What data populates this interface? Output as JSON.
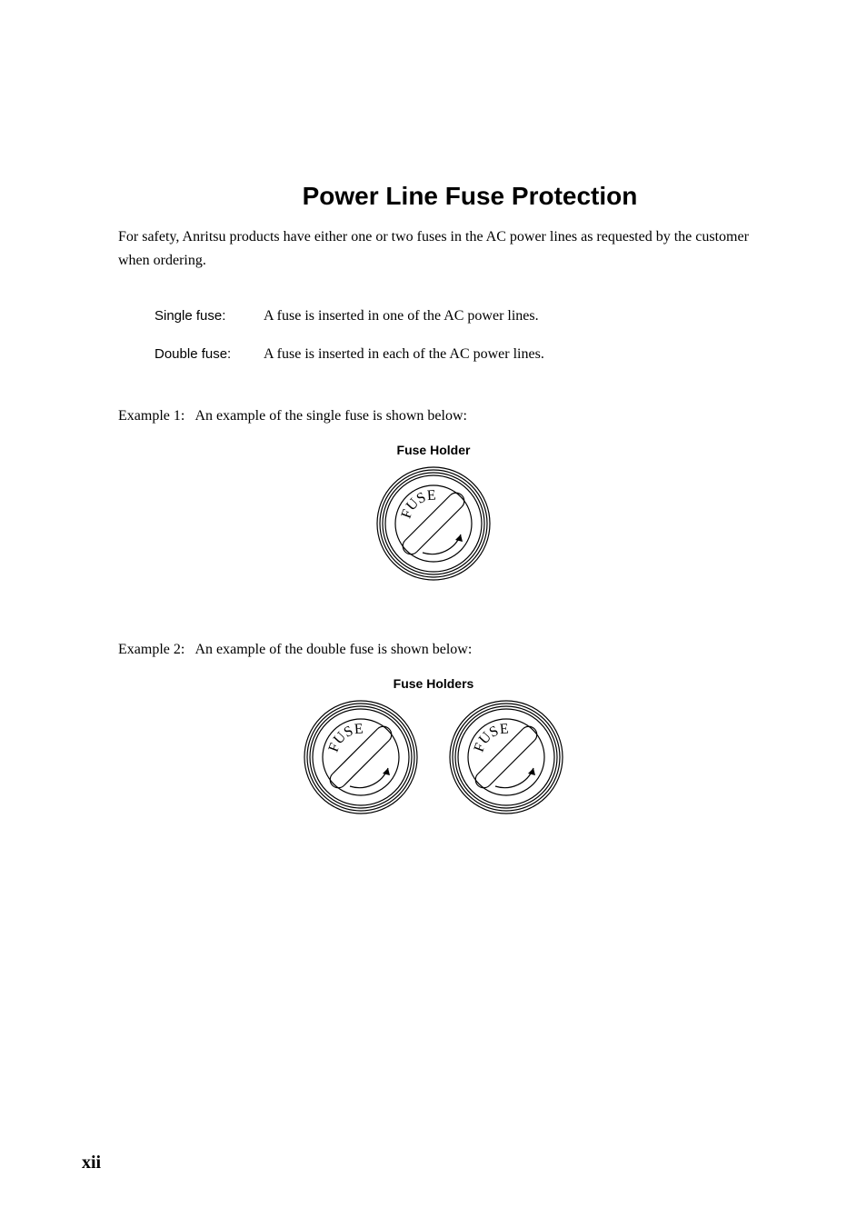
{
  "title": "Power Line Fuse Protection",
  "intro": "For safety, Anritsu products have either one or two fuses in the AC power lines as requested by the customer when ordering.",
  "fuse_defs": {
    "single": {
      "label": "Single fuse:",
      "desc": "A fuse is inserted in one of the AC power lines."
    },
    "double": {
      "label": "Double fuse:",
      "desc": "A fuse is inserted in each of the AC power lines."
    }
  },
  "example1": {
    "label": "Example 1:",
    "text": "An example of the single fuse is shown below:",
    "figure_label": "Fuse Holder"
  },
  "example2": {
    "label": "Example 2:",
    "text": "An example of the double fuse is shown below:",
    "figure_label": "Fuse Holders"
  },
  "page_number": "xii",
  "fuse_holder_svg": {
    "outer_radius": 60,
    "ring_colors": "#000000",
    "background": "#ffffff",
    "text": "FUSE",
    "text_fontsize": 16,
    "stroke_width": 1.2
  }
}
